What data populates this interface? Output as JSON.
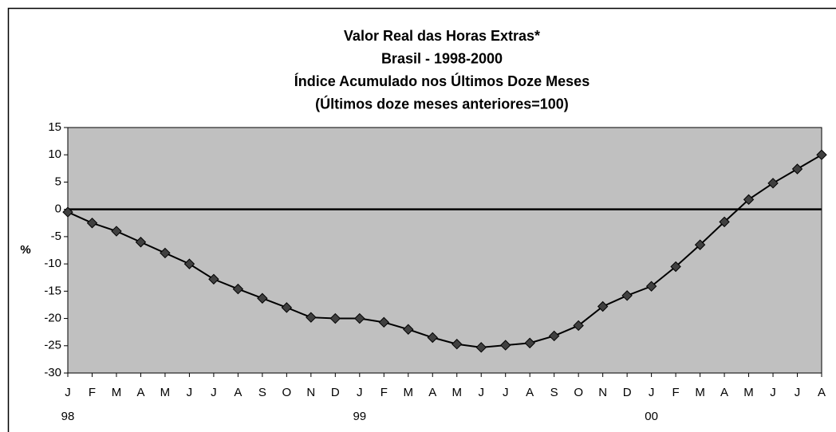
{
  "chart_data": {
    "type": "line",
    "title": [
      "Valor Real das Horas Extras*",
      "Brasil - 1998-2000",
      "Índice Acumulado nos Últimos Doze Meses",
      "(Últimos doze meses anteriores=100)"
    ],
    "ylabel": "%",
    "categories": [
      "J",
      "F",
      "M",
      "A",
      "M",
      "J",
      "J",
      "A",
      "S",
      "O",
      "N",
      "D",
      "J",
      "F",
      "M",
      "A",
      "M",
      "J",
      "J",
      "A",
      "S",
      "O",
      "N",
      "D",
      "J",
      "F",
      "M",
      "A",
      "M",
      "J",
      "J",
      "A"
    ],
    "year_labels": [
      "98",
      "99",
      "00"
    ],
    "series": [
      {
        "name": "Valor Real das Horas Extras",
        "color": "#000000",
        "marker_color": "#404040",
        "values": [
          -0.5,
          -2.5,
          -4,
          -6,
          -8,
          -10,
          -12.8,
          -14.6,
          -16.3,
          -18,
          -19.8,
          -20,
          -20,
          -20.7,
          -22,
          -23.5,
          -24.7,
          -25.3,
          -24.9,
          -24.5,
          -23.2,
          -21.3,
          -17.8,
          -15.8,
          -14.1,
          -10.5,
          -6.5,
          -2.3,
          1.8,
          4.8,
          7.4,
          10
        ]
      }
    ],
    "ylim": [
      -30,
      15
    ],
    "yticks": [
      15,
      10,
      5,
      0,
      -5,
      -10,
      -15,
      -20,
      -25,
      -30
    ],
    "hline": 0,
    "plot_background": "#c0c0c0"
  }
}
